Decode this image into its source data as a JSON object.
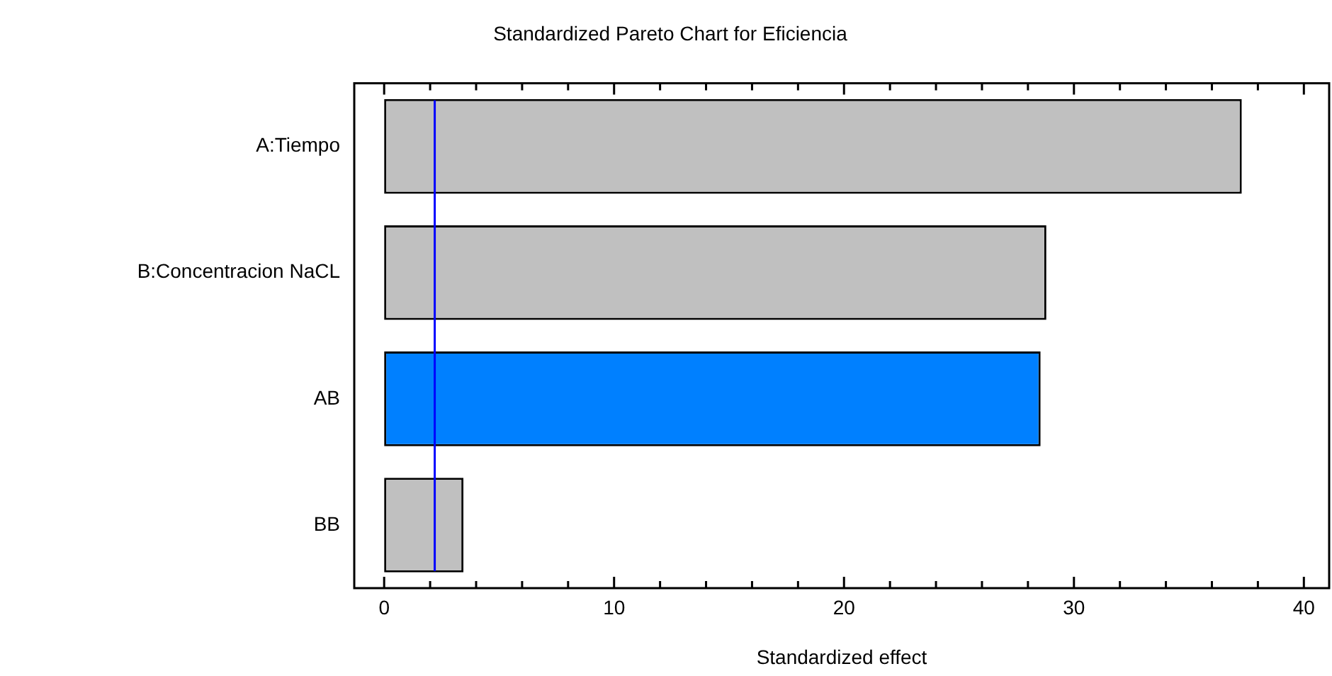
{
  "chart_data": {
    "type": "bar",
    "orientation": "horizontal",
    "title": "Standardized Pareto Chart for Eficiencia",
    "xlabel": "Standardized effect",
    "categories": [
      "A:Tiempo",
      "B:Concentracion NaCL",
      "AB",
      "BB"
    ],
    "values": [
      37.3,
      28.8,
      28.55,
      3.45
    ],
    "colors": [
      "#c0c0c0",
      "#c0c0c0",
      "#0080ff",
      "#c0c0c0"
    ],
    "xlim": [
      -1.3,
      41.1
    ],
    "xticks": [
      0,
      {
        "value": 2,
        "label": null
      },
      {
        "value": 4,
        "label": null
      },
      {
        "value": 6,
        "label": null
      },
      {
        "value": 8,
        "label": null
      },
      10,
      {
        "value": 12,
        "label": null
      },
      {
        "value": 14,
        "label": null
      },
      {
        "value": 16,
        "label": null
      },
      {
        "value": 18,
        "label": null
      },
      20,
      {
        "value": 22,
        "label": null
      },
      {
        "value": 24,
        "label": null
      },
      {
        "value": 26,
        "label": null
      },
      {
        "value": 28,
        "label": null
      },
      30,
      {
        "value": 32,
        "label": null
      },
      {
        "value": 34,
        "label": null
      },
      {
        "value": 36,
        "label": null
      },
      {
        "value": 38,
        "label": null
      },
      40
    ],
    "ref_lines": [
      {
        "axis": "x",
        "value": 2.2,
        "color": "#0000ff"
      }
    ],
    "grid": false,
    "legend": false
  }
}
